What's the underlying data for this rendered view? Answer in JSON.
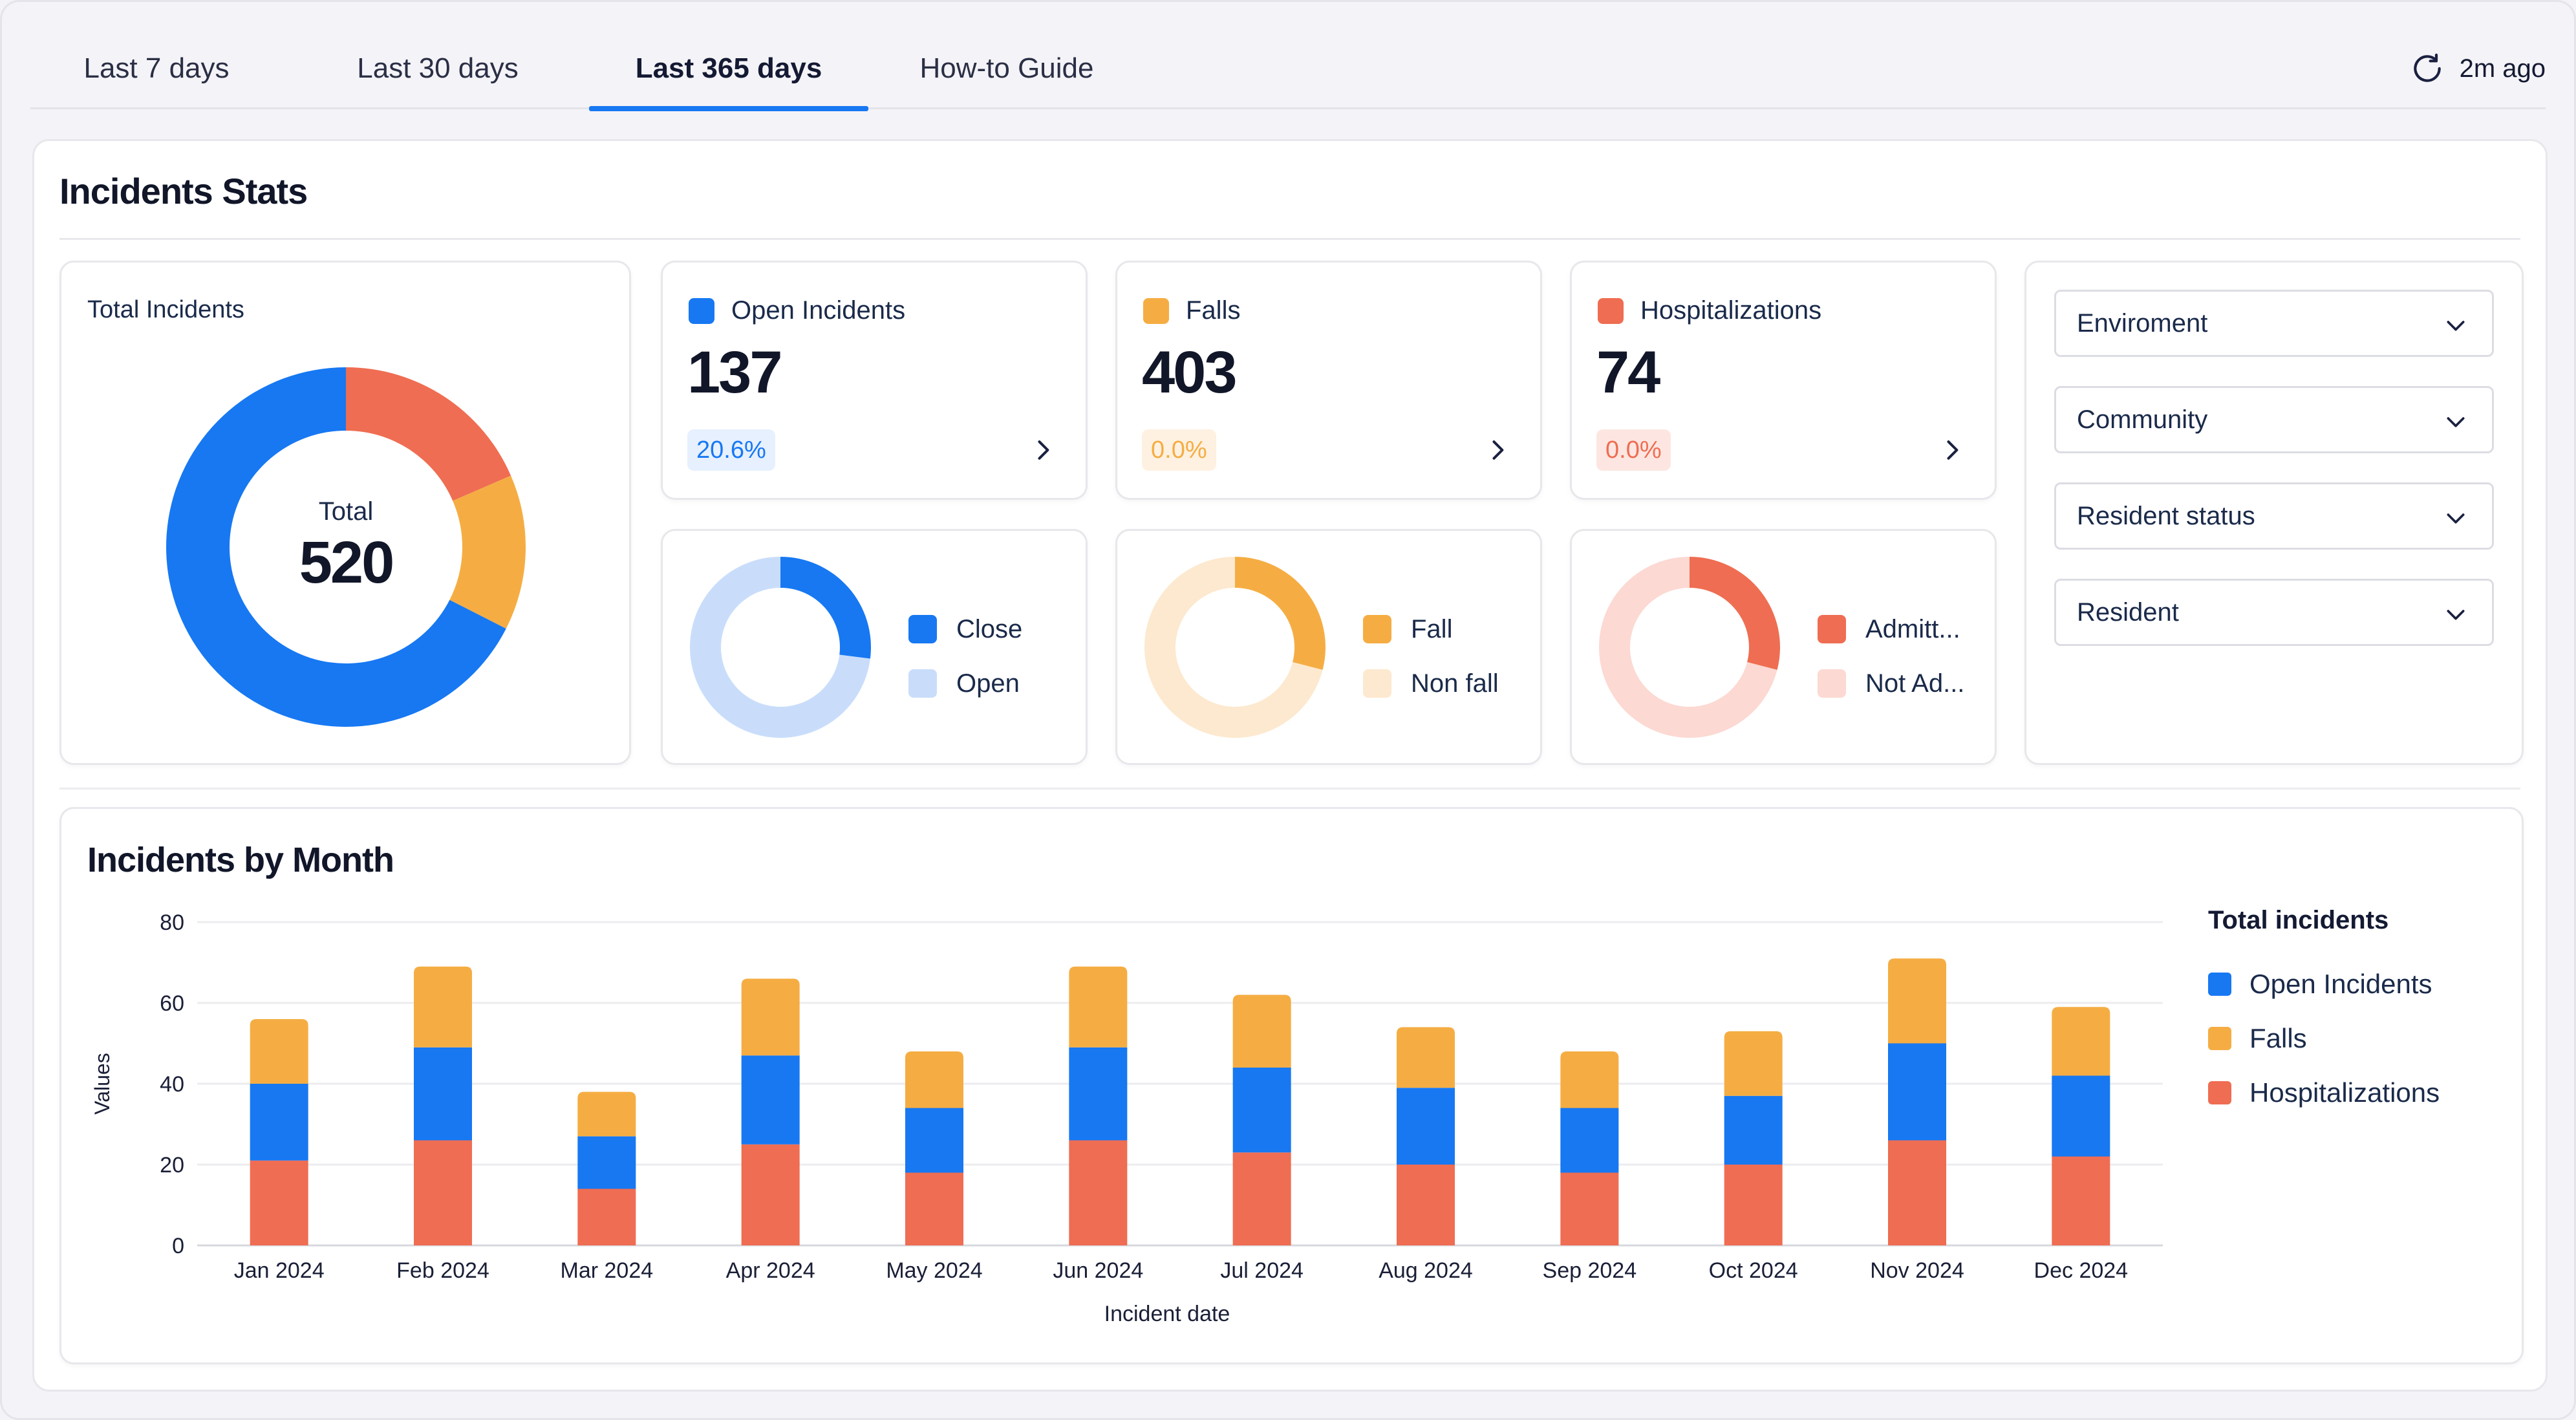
{
  "tabs": [
    {
      "label": "Last 7 days",
      "active": false
    },
    {
      "label": "Last 30 days",
      "active": false
    },
    {
      "label": "Last 365 days",
      "active": true
    },
    {
      "label": "How-to Guide",
      "active": false
    }
  ],
  "refresh": {
    "label": "2m ago",
    "icon": "refresh-icon"
  },
  "stats": {
    "title": "Incidents Stats",
    "total": {
      "label": "Total Incidents",
      "center_label": "Total",
      "center_value": "520"
    },
    "open": {
      "label": "Open Incidents",
      "value": "137",
      "badge": "20.6%",
      "color": "#1778f2"
    },
    "falls": {
      "label": "Falls",
      "value": "403",
      "badge": "0.0%",
      "color": "#f5ad43"
    },
    "hosp": {
      "label": "Hospitalizations",
      "value": "74",
      "badge": "0.0%",
      "color": "#ef6d52"
    },
    "open_breakdown": {
      "legend": [
        "Close",
        "Open"
      ],
      "colors": [
        "#1778f2",
        "#c9ddfb"
      ],
      "fraction_first": 0.27
    },
    "falls_breakdown": {
      "legend": [
        "Fall",
        "Non fall"
      ],
      "colors": [
        "#f5ad43",
        "#fde9cf"
      ],
      "fraction_first": 0.29
    },
    "hosp_breakdown": {
      "legend": [
        "Admitt...",
        "Not Ad..."
      ],
      "colors": [
        "#ef6d52",
        "#fcd9d2"
      ],
      "fraction_first": 0.29
    }
  },
  "filters": [
    "Enviroment",
    "Community",
    "Resident status",
    "Resident"
  ],
  "total_donut": {
    "colors": [
      "#ef6d52",
      "#f5ad43",
      "#1778f2"
    ],
    "fractions": [
      0.185,
      0.14,
      0.675
    ]
  },
  "chart_data": {
    "type": "bar",
    "title": "Incidents by Month",
    "xlabel": "Incident date",
    "ylabel": "Values",
    "ylim": [
      0,
      80
    ],
    "yticks": [
      0,
      20,
      40,
      60,
      80
    ],
    "stacked": true,
    "grid": true,
    "legend_title": "Total incidents",
    "legend_position": "right",
    "categories": [
      "Jan 2024",
      "Feb 2024",
      "Mar 2024",
      "Apr 2024",
      "May 2024",
      "Jun 2024",
      "Jul 2024",
      "Aug 2024",
      "Sep 2024",
      "Oct 2024",
      "Nov 2024",
      "Dec 2024"
    ],
    "series": [
      {
        "name": "Hospitalizations",
        "color": "#ef6d52",
        "values": [
          21,
          26,
          14,
          25,
          18,
          26,
          23,
          20,
          18,
          20,
          26,
          22
        ]
      },
      {
        "name": "Open Incidents",
        "color": "#1778f2",
        "values": [
          19,
          23,
          13,
          22,
          16,
          23,
          21,
          19,
          16,
          17,
          24,
          20
        ]
      },
      {
        "name": "Falls",
        "color": "#f5ad43",
        "values": [
          16,
          20,
          11,
          19,
          14,
          20,
          18,
          15,
          14,
          16,
          21,
          17
        ]
      }
    ],
    "legend_order": [
      "Open Incidents",
      "Falls",
      "Hospitalizations"
    ]
  }
}
